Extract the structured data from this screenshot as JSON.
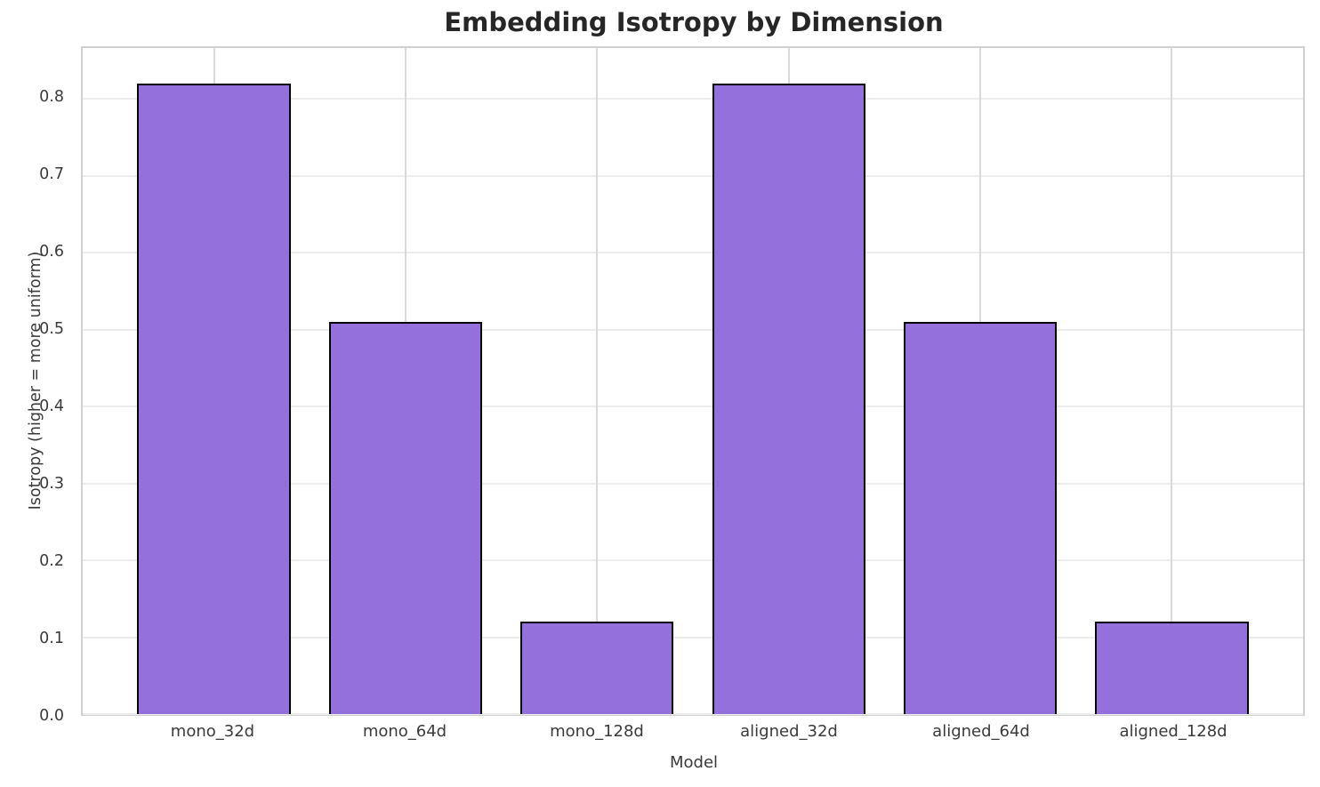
{
  "chart_data": {
    "type": "bar",
    "title": "Embedding Isotropy by Dimension",
    "xlabel": "Model",
    "ylabel": "Isotropy (higher = more uniform)",
    "categories": [
      "mono_32d",
      "mono_64d",
      "mono_128d",
      "aligned_32d",
      "aligned_64d",
      "aligned_128d"
    ],
    "values": [
      0.82,
      0.51,
      0.12,
      0.82,
      0.51,
      0.12
    ],
    "yticks": [
      "0.0",
      "0.1",
      "0.2",
      "0.3",
      "0.4",
      "0.5",
      "0.6",
      "0.7",
      "0.8"
    ],
    "ylim": [
      0,
      0.866
    ],
    "grid": "on",
    "legend": "none",
    "bar_color": "#9370DB",
    "bar_edge_color": "#000000",
    "grid_color_horizontal": "#ececec",
    "grid_color_vertical": "#d9d9d9",
    "title_color": "#262626",
    "tick_color": "#3a3a3a"
  }
}
